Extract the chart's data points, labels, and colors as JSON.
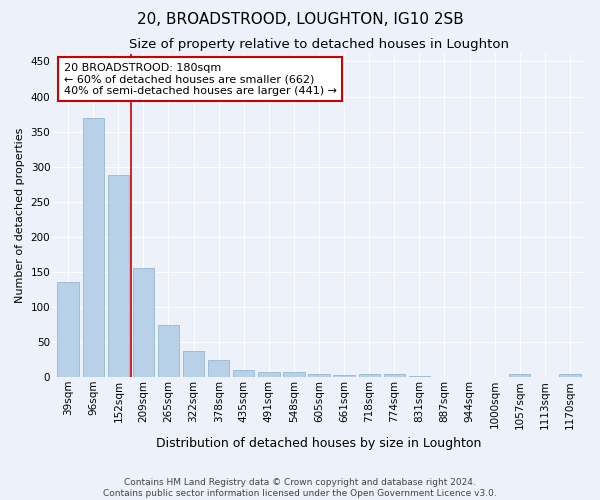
{
  "title": "20, BROADSTROOD, LOUGHTON, IG10 2SB",
  "subtitle": "Size of property relative to detached houses in Loughton",
  "xlabel": "Distribution of detached houses by size in Loughton",
  "ylabel": "Number of detached properties",
  "categories": [
    "39sqm",
    "96sqm",
    "152sqm",
    "209sqm",
    "265sqm",
    "322sqm",
    "378sqm",
    "435sqm",
    "491sqm",
    "548sqm",
    "605sqm",
    "661sqm",
    "718sqm",
    "774sqm",
    "831sqm",
    "887sqm",
    "944sqm",
    "1000sqm",
    "1057sqm",
    "1113sqm",
    "1170sqm"
  ],
  "values": [
    135,
    370,
    288,
    155,
    75,
    37,
    25,
    10,
    8,
    7,
    5,
    3,
    5,
    5,
    2,
    0,
    0,
    0,
    4,
    0,
    4
  ],
  "bar_color": "#b8d0e8",
  "bar_edgecolor": "#8ab0cc",
  "vline_x": 2.5,
  "vline_color": "#cc0000",
  "annotation_text": "20 BROADSTROOD: 180sqm\n← 60% of detached houses are smaller (662)\n40% of semi-detached houses are larger (441) →",
  "annotation_box_facecolor": "#ffffff",
  "annotation_box_edgecolor": "#cc0000",
  "ylim": [
    0,
    460
  ],
  "yticks": [
    0,
    50,
    100,
    150,
    200,
    250,
    300,
    350,
    400,
    450
  ],
  "background_color": "#edf1f9",
  "grid_color": "#ffffff",
  "footer_line1": "Contains HM Land Registry data © Crown copyright and database right 2024.",
  "footer_line2": "Contains public sector information licensed under the Open Government Licence v3.0.",
  "title_fontsize": 11,
  "subtitle_fontsize": 9.5,
  "xlabel_fontsize": 9,
  "ylabel_fontsize": 8,
  "tick_fontsize": 7.5,
  "footer_fontsize": 6.5
}
